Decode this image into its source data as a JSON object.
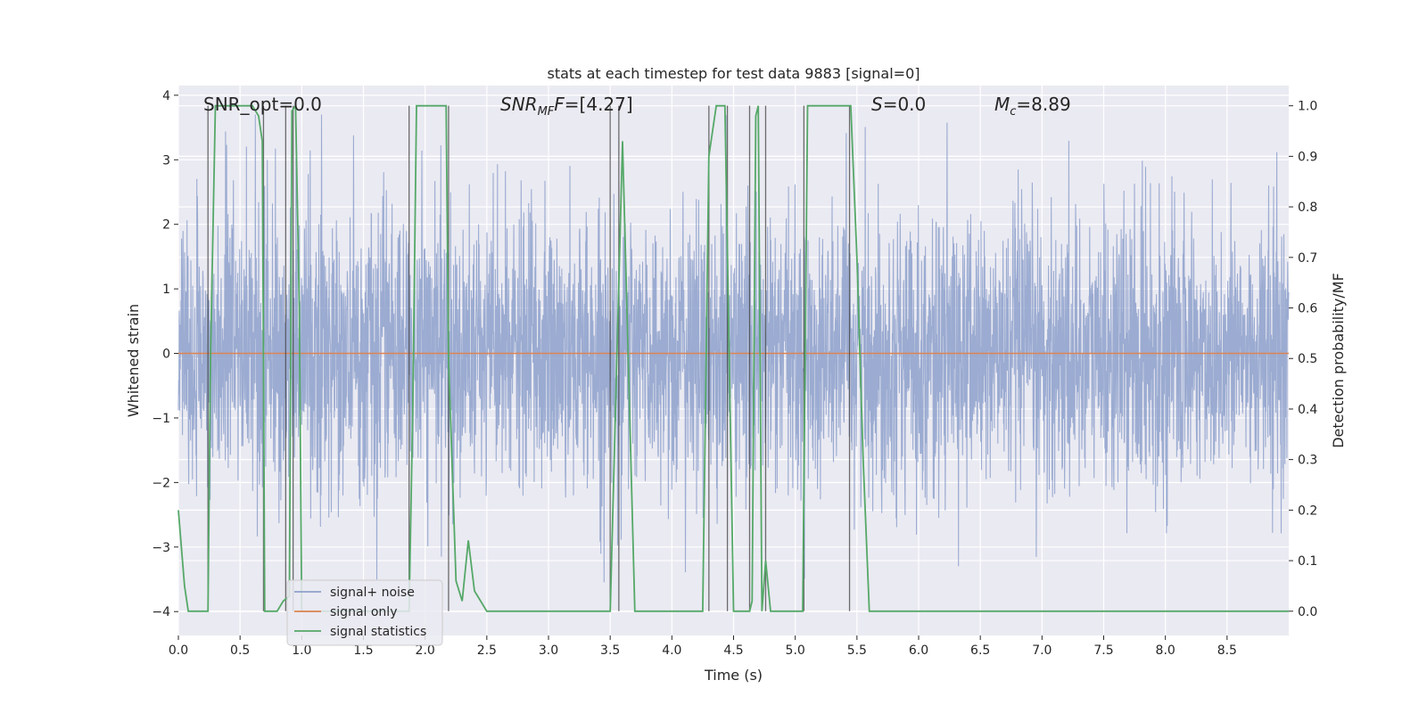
{
  "chart_data": {
    "type": "line",
    "title": "stats at each timestep for test data 9883 [signal=0]",
    "xlabel": "Time (s)",
    "ylabel": "Whitened strain",
    "y2label": "Detection probability/MF",
    "xlim": [
      0,
      9.0
    ],
    "ylim": [
      -4.37,
      4.15
    ],
    "y2lim": [
      -0.048,
      1.04
    ],
    "xticks": [
      0.0,
      0.5,
      1.0,
      1.5,
      2.0,
      2.5,
      3.0,
      3.5,
      4.0,
      4.5,
      5.0,
      5.5,
      6.0,
      6.5,
      7.0,
      7.5,
      8.0,
      8.5
    ],
    "xtick_labels": [
      "0.0",
      "0.5",
      "1.0",
      "1.5",
      "2.0",
      "2.5",
      "3.0",
      "3.5",
      "4.0",
      "4.5",
      "5.0",
      "5.5",
      "6.0",
      "6.5",
      "7.0",
      "7.5",
      "8.0",
      "8.5"
    ],
    "yticks": [
      4,
      3,
      2,
      1,
      0,
      -1,
      -2,
      -3,
      -4
    ],
    "ytick_labels": [
      "4",
      "3",
      "2",
      "1",
      "0",
      "−1",
      "−2",
      "−3",
      "−4"
    ],
    "y2ticks": [
      1.0,
      0.9,
      0.8,
      0.7,
      0.6,
      0.5,
      0.4,
      0.3,
      0.2,
      0.1,
      0.0
    ],
    "y2tick_labels": [
      "1.0",
      "0.9",
      "0.8",
      "0.7",
      "0.6",
      "0.5",
      "0.4",
      "0.3",
      "0.2",
      "0.1",
      "0.0"
    ],
    "annotations": {
      "snr_opt": "SNR_opt=0.0",
      "snr_mf_main": "SNR",
      "snr_mf_sub": "MF",
      "snr_mf_value": "=[4.27]",
      "s_main": "S",
      "s_value": "=0.0",
      "mc_main": "M",
      "mc_sub": "c",
      "mc_value": "=8.89"
    },
    "legend": {
      "placement": "lower-left",
      "entries": [
        {
          "label": "signal+ noise",
          "color": "#8da0cb"
        },
        {
          "label": "signal only",
          "color": "#dd8452"
        },
        {
          "label": "signal statistics",
          "color": "#55a868"
        }
      ]
    },
    "series": [
      {
        "name": "signal+ noise",
        "type": "noise",
        "amplitude_range": [
          -3.8,
          3.7
        ],
        "typical_band": [
          -1.7,
          1.4
        ],
        "samples": 4096
      },
      {
        "name": "signal only",
        "values_constant": 0.0
      },
      {
        "name": "signal statistics",
        "axis": "right",
        "x": [
          0.0,
          0.05,
          0.08,
          0.24,
          0.26,
          0.3,
          0.6,
          0.65,
          0.68,
          0.69,
          0.7,
          0.76,
          0.8,
          0.85,
          0.9,
          0.92,
          0.95,
          0.98,
          1.0,
          1.87,
          1.9,
          1.93,
          2.17,
          2.19,
          2.25,
          2.3,
          2.35,
          2.4,
          2.45,
          2.5,
          3.5,
          3.6,
          3.7,
          4.25,
          4.3,
          4.36,
          4.43,
          4.5,
          4.6,
          4.63,
          4.65,
          4.68,
          4.7,
          4.73,
          4.76,
          4.8,
          4.9,
          5.0,
          5.06,
          5.1,
          5.45,
          5.5,
          5.55,
          5.6,
          9.0
        ],
        "y": [
          0.2,
          0.05,
          0.0,
          0.0,
          0.5,
          1.0,
          1.0,
          0.98,
          0.93,
          0.5,
          0.0,
          0.0,
          0.0,
          0.02,
          0.03,
          0.99,
          1.0,
          0.6,
          0.0,
          0.0,
          0.4,
          1.0,
          1.0,
          0.5,
          0.06,
          0.02,
          0.14,
          0.04,
          0.02,
          0.0,
          0.0,
          0.93,
          0.0,
          0.0,
          0.9,
          1.0,
          1.0,
          0.0,
          0.0,
          0.0,
          0.02,
          0.98,
          1.0,
          0.0,
          0.1,
          0.0,
          0.0,
          0.0,
          0.0,
          1.0,
          1.0,
          0.7,
          0.3,
          0.0,
          0.0
        ]
      }
    ],
    "vertical_markers": [
      0.24,
      0.69,
      0.87,
      0.93,
      1.87,
      2.19,
      3.5,
      3.57,
      4.3,
      4.45,
      4.63,
      4.76,
      5.07,
      5.44
    ],
    "colors": {
      "background": "#eaeaf2",
      "grid": "#ffffff",
      "noise": "#8da0cb",
      "signal": "#dd8452",
      "stats": "#55a868",
      "markers": "#404040"
    }
  }
}
